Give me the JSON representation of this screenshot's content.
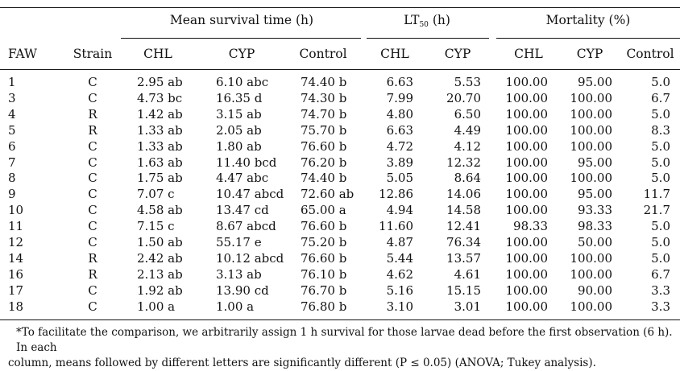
{
  "header": {
    "group_mean": "Mean survival time (h)",
    "group_lt50_prefix": "LT",
    "group_lt50_sub": "50",
    "group_lt50_suffix": " (h)",
    "group_mortality": "Mortality (%)",
    "col_faw": "FAW",
    "col_strain": "Strain",
    "col_chl": "CHL",
    "col_cyp": "CYP",
    "col_control": "Control"
  },
  "rows": [
    {
      "faw": "1",
      "strain": "C",
      "mst_chl": "2.95 ab",
      "mst_cyp": "6.10 abc",
      "mst_control": "74.40 b",
      "lt_chl": "6.63",
      "lt_cyp": "5.53",
      "mort_chl": "100.00",
      "mort_cyp": "95.00",
      "mort_control": "5.0"
    },
    {
      "faw": "3",
      "strain": "C",
      "mst_chl": "4.73 bc",
      "mst_cyp": "16.35 d",
      "mst_control": "74.30 b",
      "lt_chl": "7.99",
      "lt_cyp": "20.70",
      "mort_chl": "100.00",
      "mort_cyp": "100.00",
      "mort_control": "6.7"
    },
    {
      "faw": "4",
      "strain": "R",
      "mst_chl": "1.42 ab",
      "mst_cyp": "3.15 ab",
      "mst_control": "74.70 b",
      "lt_chl": "4.80",
      "lt_cyp": "6.50",
      "mort_chl": "100.00",
      "mort_cyp": "100.00",
      "mort_control": "5.0"
    },
    {
      "faw": "5",
      "strain": "R",
      "mst_chl": "1.33 ab",
      "mst_cyp": "2.05 ab",
      "mst_control": "75.70 b",
      "lt_chl": "6.63",
      "lt_cyp": "4.49",
      "mort_chl": "100.00",
      "mort_cyp": "100.00",
      "mort_control": "8.3"
    },
    {
      "faw": "6",
      "strain": "C",
      "mst_chl": "1.33 ab",
      "mst_cyp": "1.80 ab",
      "mst_control": "76.60 b",
      "lt_chl": "4.72",
      "lt_cyp": "4.12",
      "mort_chl": "100.00",
      "mort_cyp": "100.00",
      "mort_control": "5.0"
    },
    {
      "faw": "7",
      "strain": "C",
      "mst_chl": "1.63 ab",
      "mst_cyp": "11.40 bcd",
      "mst_control": "76.20 b",
      "lt_chl": "3.89",
      "lt_cyp": "12.32",
      "mort_chl": "100.00",
      "mort_cyp": "95.00",
      "mort_control": "5.0"
    },
    {
      "faw": "8",
      "strain": "C",
      "mst_chl": "1.75 ab",
      "mst_cyp": "4.47 abc",
      "mst_control": "74.40 b",
      "lt_chl": "5.05",
      "lt_cyp": "8.64",
      "mort_chl": "100.00",
      "mort_cyp": "100.00",
      "mort_control": "5.0"
    },
    {
      "faw": "9",
      "strain": "C",
      "mst_chl": "7.07 c",
      "mst_cyp": "10.47 abcd",
      "mst_control": "72.60 ab",
      "lt_chl": "12.86",
      "lt_cyp": "14.06",
      "mort_chl": "100.00",
      "mort_cyp": "95.00",
      "mort_control": "11.7"
    },
    {
      "faw": "10",
      "strain": "C",
      "mst_chl": "4.58 ab",
      "mst_cyp": "13.47 cd",
      "mst_control": "65.00 a",
      "lt_chl": "4.94",
      "lt_cyp": "14.58",
      "mort_chl": "100.00",
      "mort_cyp": "93.33",
      "mort_control": "21.7"
    },
    {
      "faw": "11",
      "strain": "C",
      "mst_chl": "7.15 c",
      "mst_cyp": "8.67 abcd",
      "mst_control": "76.60 b",
      "lt_chl": "11.60",
      "lt_cyp": "12.41",
      "mort_chl": "98.33",
      "mort_cyp": "98.33",
      "mort_control": "5.0"
    },
    {
      "faw": "12",
      "strain": "C",
      "mst_chl": "1.50 ab",
      "mst_cyp": "55.17 e",
      "mst_control": "75.20 b",
      "lt_chl": "4.87",
      "lt_cyp": "76.34",
      "mort_chl": "100.00",
      "mort_cyp": "50.00",
      "mort_control": "5.0"
    },
    {
      "faw": "14",
      "strain": "R",
      "mst_chl": "2.42 ab",
      "mst_cyp": "10.12 abcd",
      "mst_control": "76.60 b",
      "lt_chl": "5.44",
      "lt_cyp": "13.57",
      "mort_chl": "100.00",
      "mort_cyp": "100.00",
      "mort_control": "5.0"
    },
    {
      "faw": "16",
      "strain": "R",
      "mst_chl": "2.13 ab",
      "mst_cyp": "3.13 ab",
      "mst_control": "76.10 b",
      "lt_chl": "4.62",
      "lt_cyp": "4.61",
      "mort_chl": "100.00",
      "mort_cyp": "100.00",
      "mort_control": "6.7"
    },
    {
      "faw": "17",
      "strain": "C",
      "mst_chl": "1.92 ab",
      "mst_cyp": "13.90 cd",
      "mst_control": "76.70 b",
      "lt_chl": "5.16",
      "lt_cyp": "15.15",
      "mort_chl": "100.00",
      "mort_cyp": "90.00",
      "mort_control": "3.3"
    },
    {
      "faw": "18",
      "strain": "C",
      "mst_chl": "1.00 a",
      "mst_cyp": "1.00 a",
      "mst_control": "76.80 b",
      "lt_chl": "3.10",
      "lt_cyp": "3.01",
      "mort_chl": "100.00",
      "mort_cyp": "100.00",
      "mort_control": "3.3"
    }
  ],
  "footnote": {
    "line1": "*To facilitate the comparison, we arbitrarily assign 1 h survival for those larvae dead before the first observation (6 h). In each",
    "line2": "column, means followed by different letters are significantly different (P ≤ 0.05) (ANOVA; Tukey analysis)."
  }
}
